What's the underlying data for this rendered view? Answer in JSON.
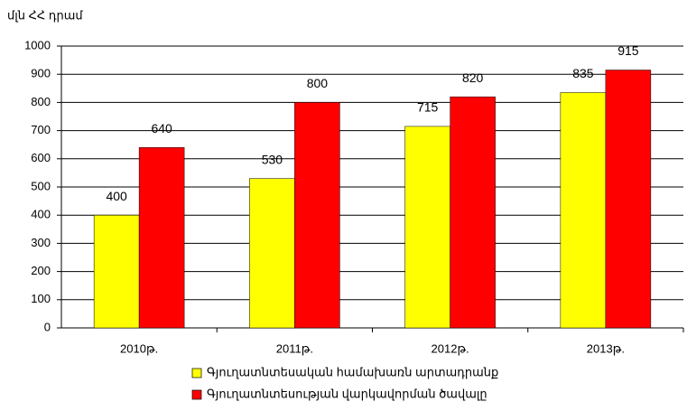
{
  "chart_data": {
    "type": "bar",
    "y_label": "մլն ՀՀ դրամ",
    "categories": [
      "2010թ.",
      "2011թ.",
      "2012թ.",
      "2013թ."
    ],
    "series": [
      {
        "name": "Գյուղատնտեսական համախառն արտադրանք",
        "color": "#ffff00",
        "values": [
          400,
          530,
          715,
          835
        ]
      },
      {
        "name": "Գյուղատնտեսության վարկավորման ծավալը",
        "color": "#ff0000",
        "values": [
          640,
          800,
          820,
          915
        ]
      }
    ],
    "ylim": [
      0,
      1000
    ],
    "yticks": [
      0,
      100,
      200,
      300,
      400,
      500,
      600,
      700,
      800,
      900,
      1000
    ],
    "grid": true,
    "legend": "bottom"
  }
}
